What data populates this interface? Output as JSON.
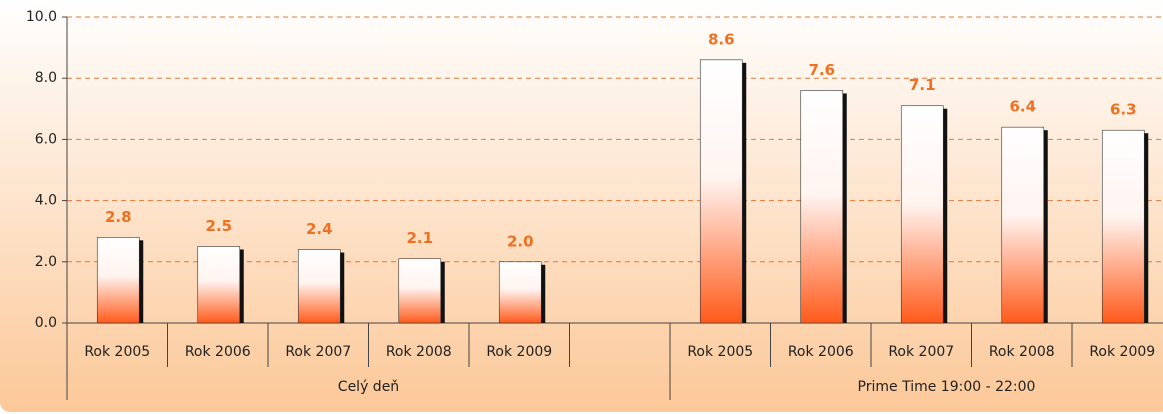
{
  "chart_data": {
    "type": "bar",
    "groups": [
      {
        "label": "Celý deň",
        "categories": [
          "Rok 2005",
          "Rok 2006",
          "Rok 2007",
          "Rok 2008",
          "Rok 2009",
          null
        ],
        "values": [
          2.8,
          2.5,
          2.4,
          2.1,
          2.0,
          null
        ],
        "value_labels": [
          "2.8",
          "2.5",
          "2.4",
          "2.1",
          "2.0",
          null
        ]
      },
      {
        "label": "Prime Time 19:00 - 22:00",
        "categories": [
          "Rok 2005",
          "Rok 2006",
          "Rok 2007",
          "Rok 2008",
          "Rok 2009"
        ],
        "values": [
          8.6,
          7.6,
          7.1,
          6.4,
          6.3
        ],
        "value_labels": [
          "8.6",
          "7.6",
          "7.1",
          "6.4",
          "6.3"
        ]
      }
    ],
    "color": "#ff5a1a",
    "label_color": "#f07020",
    "ylim": [
      0,
      10
    ],
    "yticks": [
      {
        "value": 0,
        "label": "0.0"
      },
      {
        "value": 2,
        "label": "2.0"
      },
      {
        "value": 4,
        "label": "4.0"
      },
      {
        "value": 6,
        "label": "6.0"
      },
      {
        "value": 8,
        "label": "8.0"
      },
      {
        "value": 10,
        "label": "10.0"
      }
    ],
    "grid": true
  }
}
